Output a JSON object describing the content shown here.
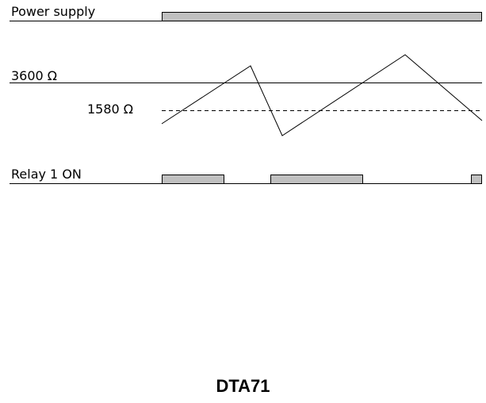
{
  "diagram": {
    "power_label": "Power supply",
    "upper_threshold_label": "3600 Ω",
    "lower_threshold_label": "1580 Ω",
    "relay_label": "Relay 1 ON",
    "title": "DTA71"
  },
  "colors": {
    "bar_fill": "#c0c0c0",
    "stroke": "#000000"
  }
}
